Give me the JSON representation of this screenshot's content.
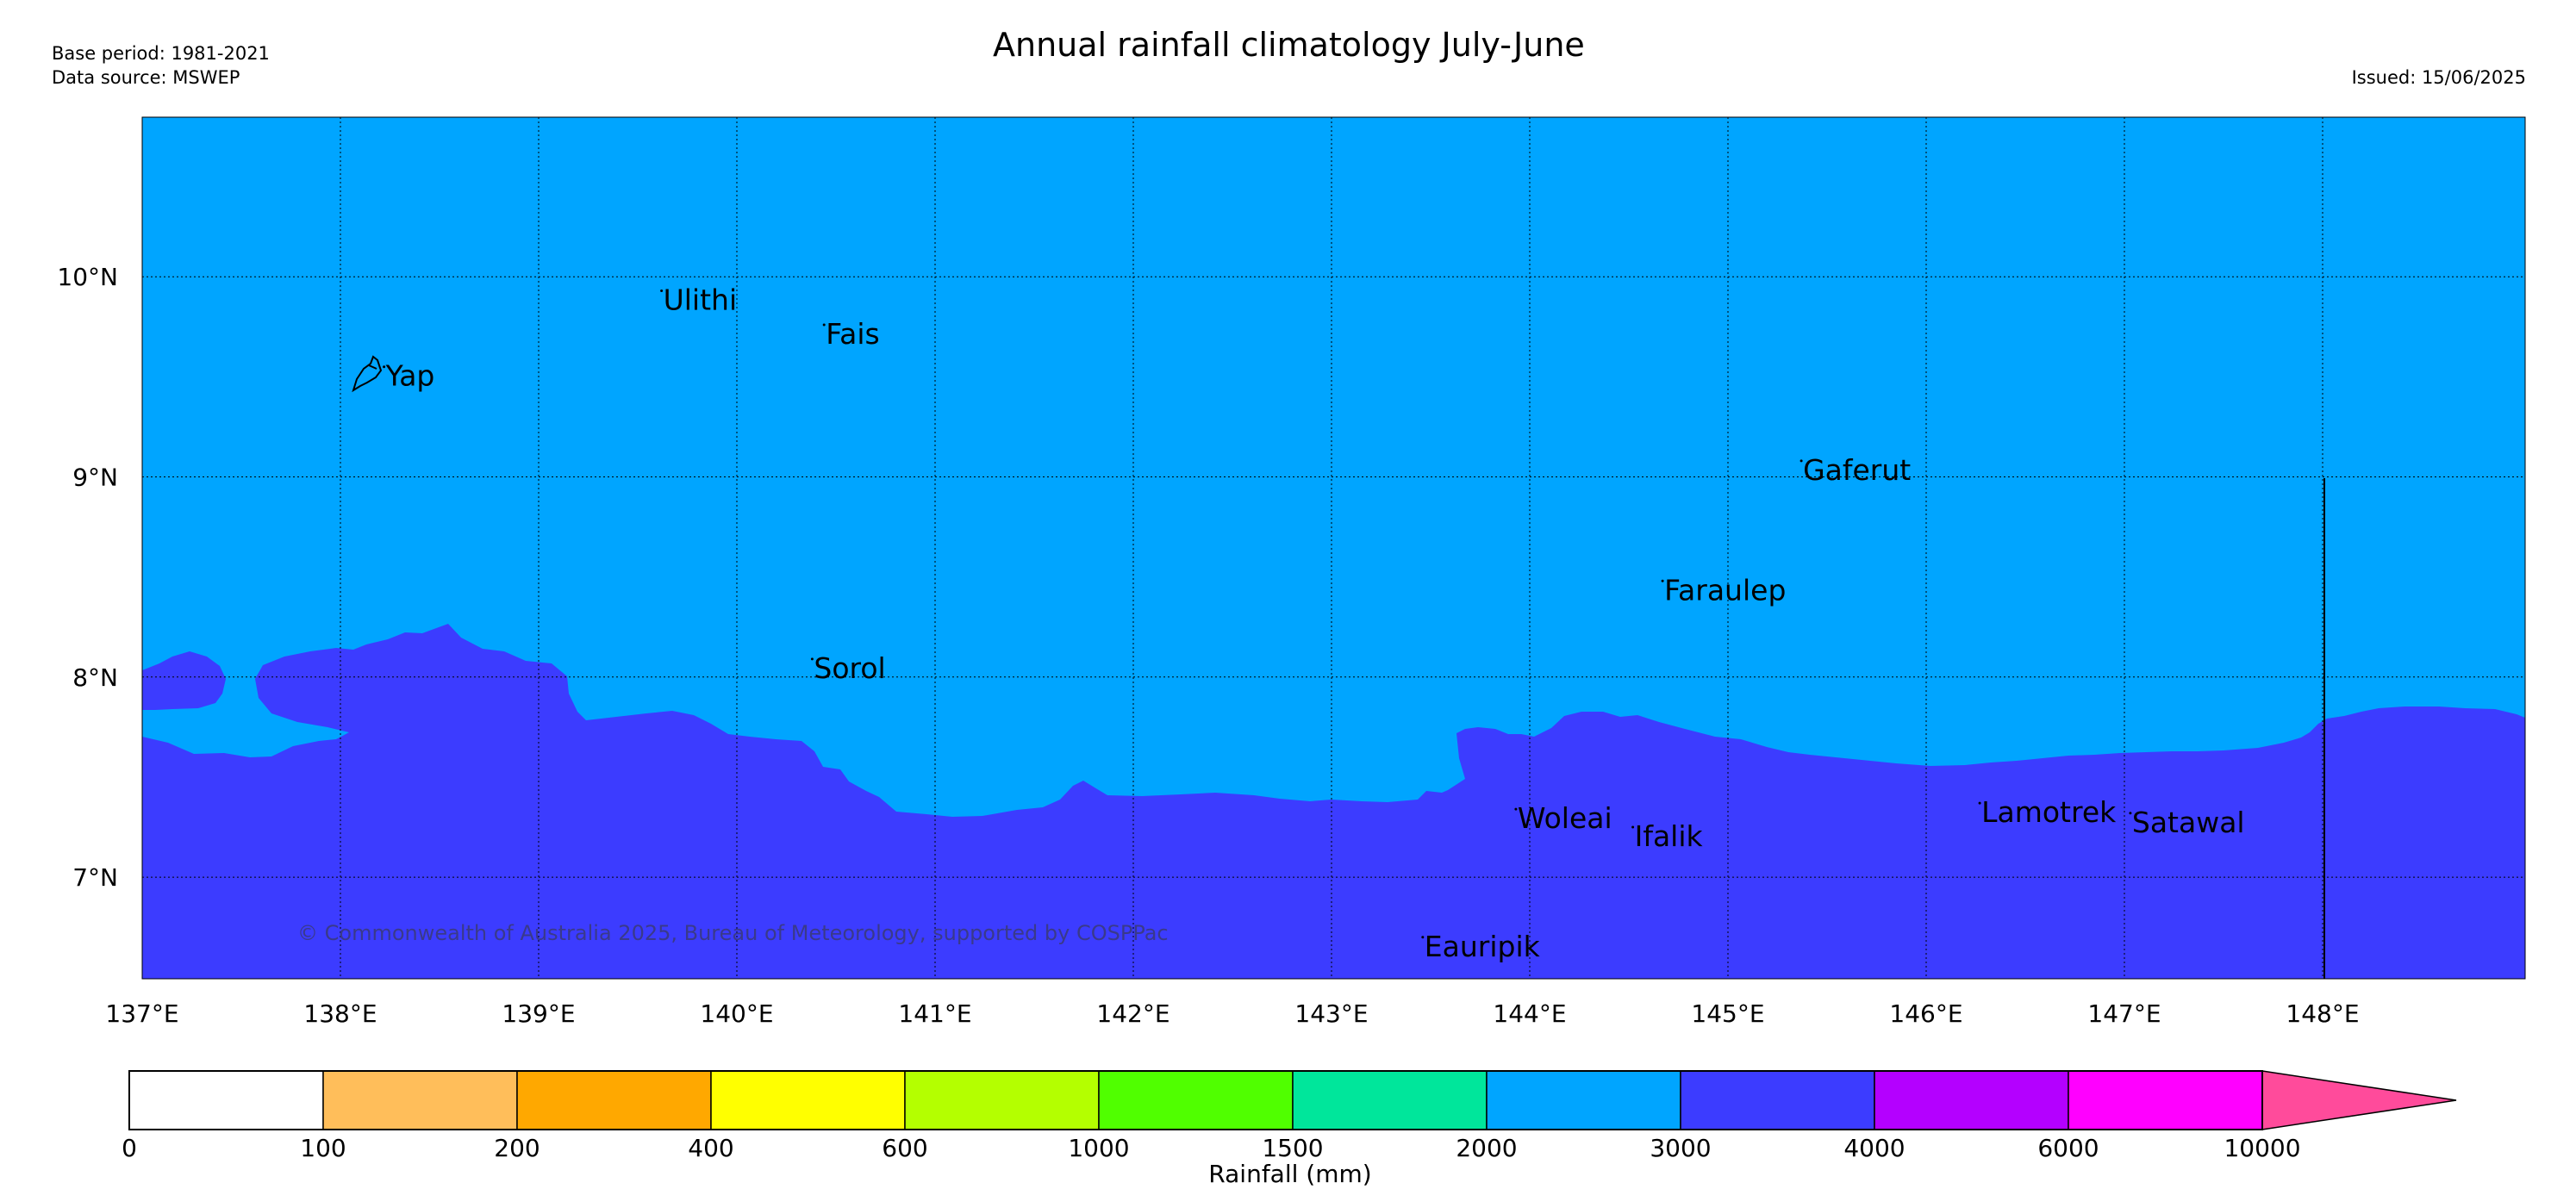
{
  "header": {
    "title": "Annual rainfall climatology July-June",
    "base_period": "Base period: 1981-2021",
    "data_source": "Data source: MSWEP",
    "issued": "Issued: 15/06/2025"
  },
  "map": {
    "lon_range": [
      137,
      149
    ],
    "lat_range": [
      6.5,
      10.8
    ],
    "lon_ticks": [
      {
        "value": 137,
        "label": "137°E"
      },
      {
        "value": 138,
        "label": "138°E"
      },
      {
        "value": 139,
        "label": "139°E"
      },
      {
        "value": 140,
        "label": "140°E"
      },
      {
        "value": 141,
        "label": "141°E"
      },
      {
        "value": 142,
        "label": "142°E"
      },
      {
        "value": 143,
        "label": "143°E"
      },
      {
        "value": 144,
        "label": "144°E"
      },
      {
        "value": 145,
        "label": "145°E"
      },
      {
        "value": 146,
        "label": "146°E"
      },
      {
        "value": 147,
        "label": "147°E"
      },
      {
        "value": 148,
        "label": "148°E"
      }
    ],
    "lat_ticks": [
      {
        "value": 10,
        "label": "10°N"
      },
      {
        "value": 9,
        "label": "9°N"
      },
      {
        "value": 8,
        "label": "8°N"
      },
      {
        "value": 7,
        "label": "7°N"
      }
    ],
    "colors": {
      "zone_2000_3000": "#00a5ff",
      "zone_3000_4000": "#3c3cff"
    },
    "places": [
      {
        "name": "Ulithi",
        "lon": 139.62,
        "lat": 9.93
      },
      {
        "name": "Fais",
        "lon": 140.44,
        "lat": 9.76
      },
      {
        "name": "Yap",
        "lon": 138.22,
        "lat": 9.55
      },
      {
        "name": "Gaferut",
        "lon": 145.37,
        "lat": 9.08
      },
      {
        "name": "Faraulep",
        "lon": 144.67,
        "lat": 8.48
      },
      {
        "name": "Sorol",
        "lon": 140.38,
        "lat": 8.09
      },
      {
        "name": "Woleai",
        "lon": 143.93,
        "lat": 7.34
      },
      {
        "name": "Ifalik",
        "lon": 144.52,
        "lat": 7.25
      },
      {
        "name": "Lamotrek",
        "lon": 146.27,
        "lat": 7.37
      },
      {
        "name": "Satawal",
        "lon": 147.03,
        "lat": 7.32
      },
      {
        "name": "Eauripik",
        "lon": 143.46,
        "lat": 6.7
      }
    ],
    "copyright": "© Commonwealth of Australia 2025, Bureau of Meteorology, supported by COSPPac"
  },
  "colorbar": {
    "label": "Rainfall (mm)",
    "bounds": [
      "0",
      "100",
      "200",
      "400",
      "600",
      "1000",
      "1500",
      "2000",
      "3000",
      "4000",
      "6000",
      "10000"
    ],
    "colors": [
      "#ffffff",
      "#ffbe5a",
      "#ffa800",
      "#ffff00",
      "#b4ff00",
      "#50ff00",
      "#00e69b",
      "#00a5ff",
      "#3c3cff",
      "#b400ff",
      "#ff00ff"
    ],
    "extend_color": "#ff4b9b"
  }
}
